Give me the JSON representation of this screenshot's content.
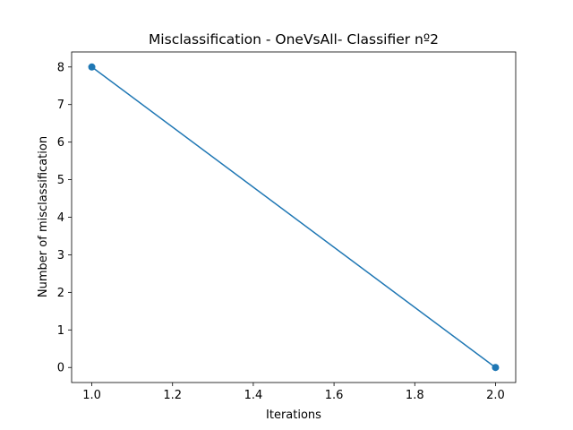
{
  "chart_data": {
    "type": "line",
    "title": "Misclassification - OneVsAll- Classifier nº2",
    "xlabel": "Iterations",
    "ylabel": "Number of misclassification",
    "x": [
      1.0,
      2.0
    ],
    "series": [
      {
        "values": [
          8,
          0
        ],
        "color": "#1f77b4",
        "marker": "circle"
      }
    ],
    "xlim": [
      0.95,
      2.05
    ],
    "ylim": [
      -0.4,
      8.4
    ],
    "xticks": [
      1.0,
      1.2,
      1.4,
      1.6,
      1.8,
      2.0
    ],
    "xtick_labels": [
      "1.0",
      "1.2",
      "1.4",
      "1.6",
      "1.8",
      "2.0"
    ],
    "yticks": [
      0,
      1,
      2,
      3,
      4,
      5,
      6,
      7,
      8
    ],
    "ytick_labels": [
      "0",
      "1",
      "2",
      "3",
      "4",
      "5",
      "6",
      "7",
      "8"
    ],
    "grid": false,
    "legend": "none"
  }
}
